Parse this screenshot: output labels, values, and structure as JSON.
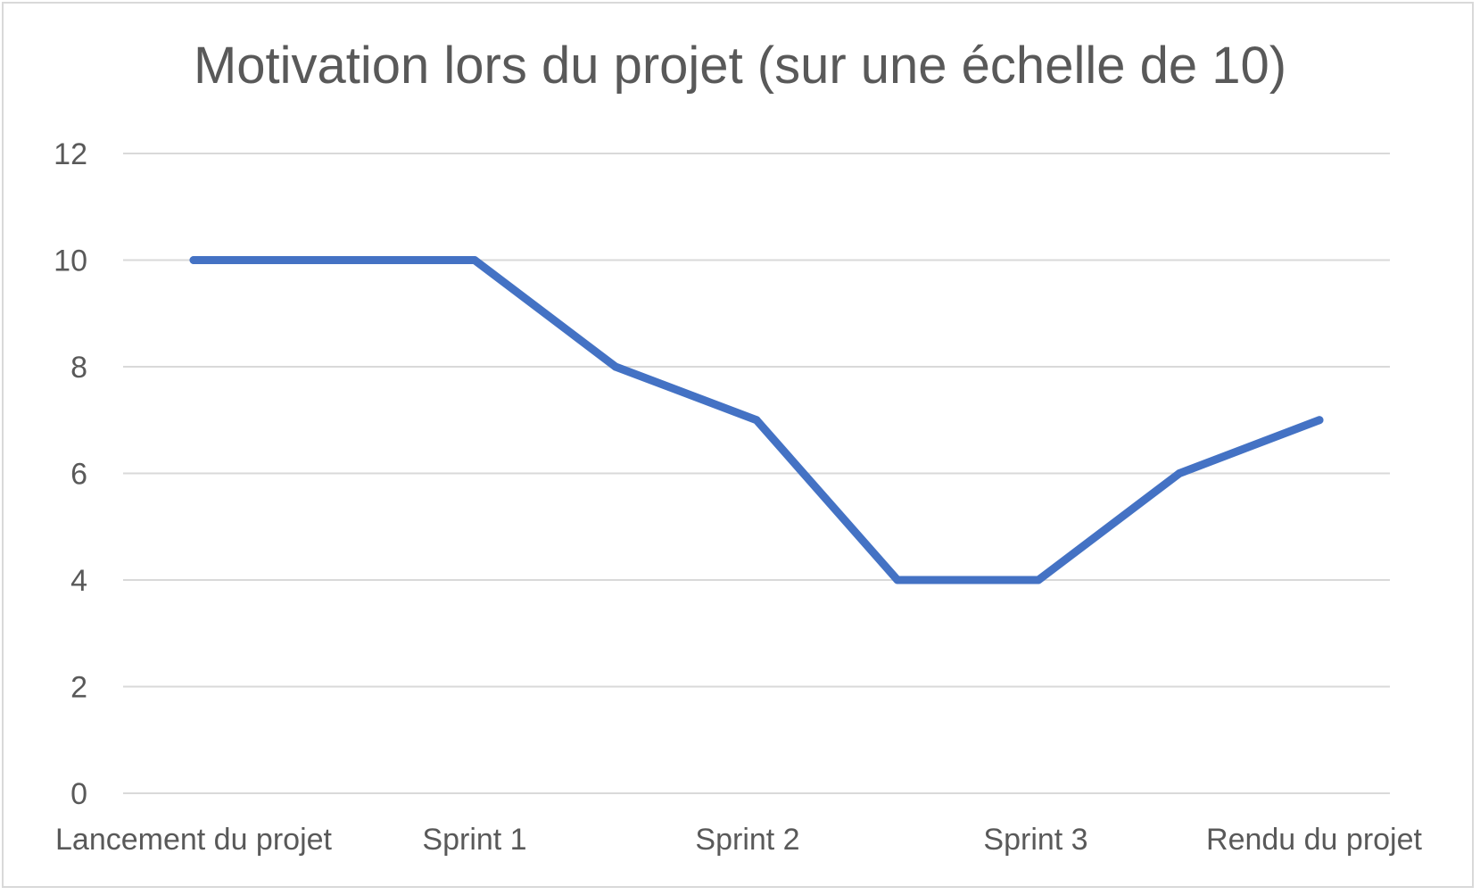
{
  "chart_data": {
    "type": "line",
    "title": "Motivation lors du projet (sur une échelle de 10)",
    "xlabel": "",
    "ylabel": "",
    "ylim": [
      0,
      12
    ],
    "y_ticks": [
      0,
      2,
      4,
      6,
      8,
      10,
      12
    ],
    "grid": true,
    "legend": "none",
    "x_tick_labels": [
      "Lancement du projet",
      "Sprint 1",
      "Sprint 2",
      "Sprint 3",
      "Rendu du projet"
    ],
    "series": [
      {
        "values": [
          10,
          10,
          10,
          8,
          7,
          4,
          4,
          6,
          7
        ]
      }
    ],
    "colors": {
      "line": "#4472c4",
      "grid": "#d9d9d9",
      "text": "#595959"
    }
  }
}
